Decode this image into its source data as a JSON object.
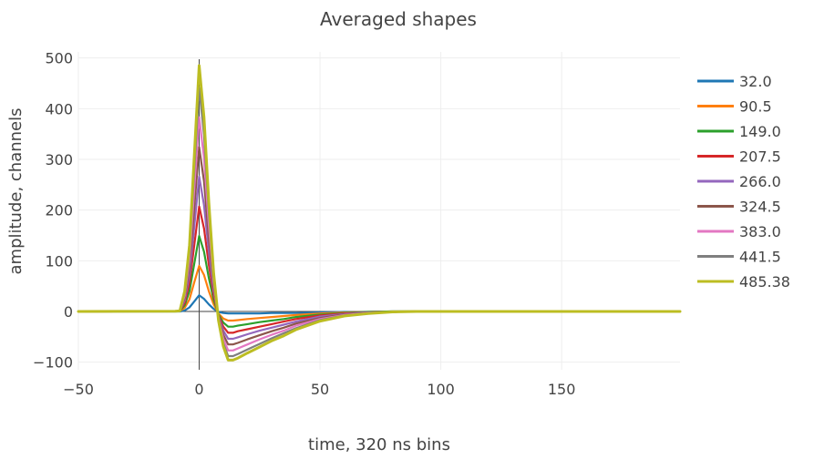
{
  "chart_data": {
    "type": "line",
    "title": "Averaged shapes",
    "xlabel": "time, 320 ns bins",
    "ylabel": "amplitude, channels",
    "xlim": [
      -50,
      199
    ],
    "ylim": [
      -115,
      512
    ],
    "xticks": [
      -50,
      0,
      50,
      100,
      150
    ],
    "xtick_labels": [
      "−50",
      "0",
      "50",
      "100",
      "150"
    ],
    "yticks": [
      -100,
      0,
      100,
      200,
      300,
      400,
      500
    ],
    "ytick_labels": [
      "−100",
      "0",
      "100",
      "200",
      "300",
      "400",
      "500"
    ],
    "grid": true,
    "legend_position": "right",
    "x": [
      -50,
      -10,
      -8,
      -6,
      -4,
      -2,
      0,
      2,
      4,
      6,
      8,
      10,
      12,
      14,
      16,
      20,
      25,
      30,
      35,
      40,
      50,
      60,
      70,
      80,
      90,
      100,
      120,
      150,
      199
    ],
    "series": [
      {
        "name": "32.0",
        "color": "#1f77b4",
        "values": [
          0,
          0,
          0,
          2,
          8,
          20,
          32,
          25,
          14,
          5,
          -1,
          -3,
          -4,
          -4,
          -4,
          -4,
          -4,
          -3,
          -3,
          -3,
          -2,
          -1,
          -1,
          0,
          0,
          0,
          0,
          0,
          0
        ]
      },
      {
        "name": "90.5",
        "color": "#ff7f0e",
        "values": [
          0,
          0.5,
          1,
          7,
          24,
          58,
          90,
          72,
          40,
          14,
          -4,
          -14,
          -18,
          -18,
          -17,
          -15,
          -13,
          -11,
          -9,
          -7,
          -4,
          -2,
          -1,
          0,
          0,
          0,
          0,
          0,
          0
        ]
      },
      {
        "name": "149.0",
        "color": "#2ca02c",
        "values": [
          0,
          0.5,
          1,
          12,
          40,
          95,
          149,
          118,
          66,
          23,
          -6,
          -22,
          -30,
          -30,
          -28,
          -25,
          -21,
          -18,
          -15,
          -11,
          -6,
          -3,
          -1,
          0,
          0,
          0,
          0,
          0,
          0
        ]
      },
      {
        "name": "207.5",
        "color": "#d62728",
        "values": [
          0,
          0.5,
          1,
          17,
          56,
          132,
          207,
          164,
          92,
          32,
          -8,
          -30,
          -42,
          -42,
          -39,
          -35,
          -30,
          -25,
          -20,
          -15,
          -8,
          -4,
          -2,
          -1,
          0,
          0,
          0,
          0,
          0
        ]
      },
      {
        "name": "266.0",
        "color": "#9467bd",
        "values": [
          0,
          0.5,
          1,
          22,
          72,
          169,
          266,
          210,
          118,
          41,
          -10,
          -38,
          -54,
          -54,
          -51,
          -45,
          -38,
          -32,
          -26,
          -20,
          -10,
          -5,
          -2,
          -1,
          0,
          0,
          0,
          0,
          0
        ]
      },
      {
        "name": "324.5",
        "color": "#8c564b",
        "values": [
          0,
          0.5,
          1,
          27,
          88,
          207,
          324,
          257,
          144,
          50,
          -12,
          -46,
          -65,
          -65,
          -62,
          -55,
          -47,
          -39,
          -32,
          -24,
          -13,
          -6,
          -3,
          -1,
          0,
          0,
          0,
          0,
          0
        ]
      },
      {
        "name": "383.0",
        "color": "#e377c2",
        "values": [
          0,
          0.5,
          1,
          31,
          103,
          244,
          383,
          303,
          170,
          59,
          -14,
          -54,
          -77,
          -77,
          -73,
          -65,
          -55,
          -46,
          -38,
          -28,
          -15,
          -7,
          -3,
          -1,
          0,
          0,
          0,
          0,
          0
        ]
      },
      {
        "name": "441.5",
        "color": "#7f7f7f",
        "values": [
          0,
          0.5,
          1,
          36,
          119,
          281,
          441,
          349,
          196,
          68,
          -17,
          -63,
          -88,
          -88,
          -84,
          -75,
          -64,
          -53,
          -43,
          -33,
          -17,
          -8,
          -4,
          -1,
          0,
          0,
          0,
          0,
          0
        ]
      },
      {
        "name": "485.38",
        "color": "#bcbd22",
        "values": [
          0,
          0.5,
          1,
          40,
          131,
          309,
          485,
          383,
          215,
          75,
          -18,
          -69,
          -96,
          -96,
          -92,
          -82,
          -70,
          -58,
          -48,
          -36,
          -19,
          -9,
          -4,
          -1,
          0,
          0,
          0,
          0,
          0
        ]
      }
    ]
  }
}
